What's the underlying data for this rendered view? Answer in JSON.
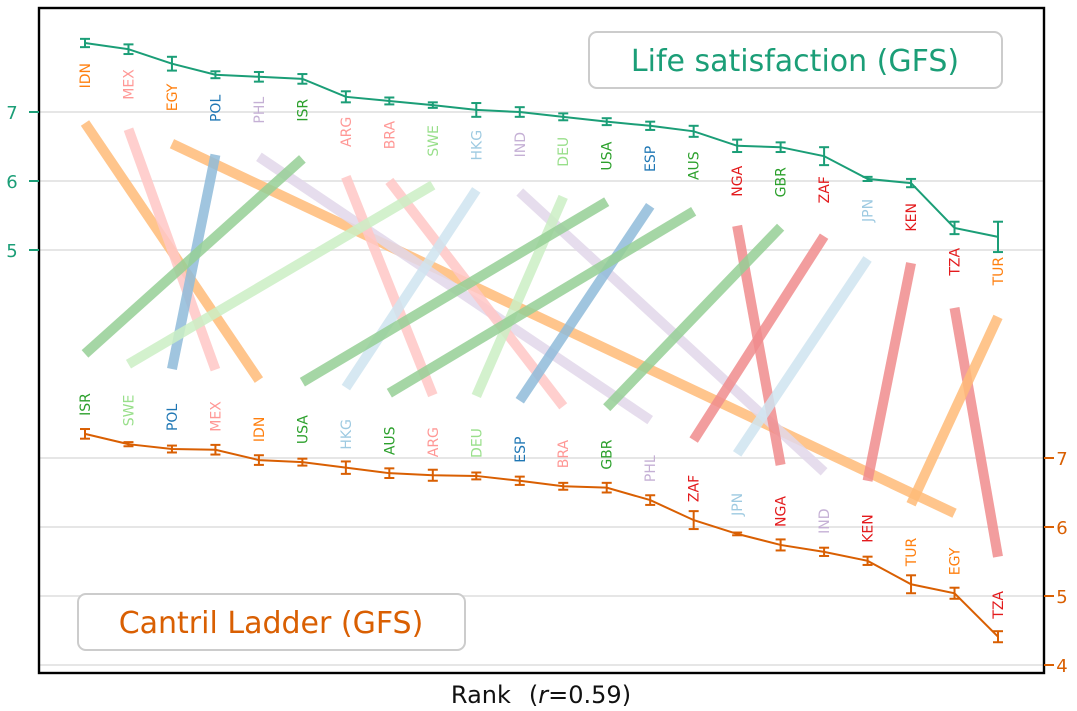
{
  "chart_data": {
    "type": "line",
    "subtype": "bump-chart",
    "title": "",
    "xlabel": "Rank",
    "xlabel_annotation_prefix": "(",
    "xlabel_annotation_var": "r",
    "xlabel_annotation_rest": "=0.59)",
    "correlation_r": 0.59,
    "grid": true,
    "series": [
      {
        "name": "Life satisfaction (GFS)",
        "axis": "left",
        "color": "#1b9e77",
        "legend_position": "top-right",
        "ticks": [
          5,
          6,
          7
        ],
        "order": [
          "IDN",
          "MEX",
          "EGY",
          "POL",
          "PHL",
          "ISR",
          "ARG",
          "BRA",
          "SWE",
          "HKG",
          "IND",
          "DEU",
          "USA",
          "ESP",
          "AUS",
          "NGA",
          "GBR",
          "ZAF",
          "JPN",
          "KEN",
          "TZA",
          "TUR"
        ],
        "values": [
          8.0,
          7.91,
          7.7,
          7.54,
          7.51,
          7.48,
          7.22,
          7.16,
          7.1,
          7.03,
          7.0,
          6.93,
          6.86,
          6.8,
          6.72,
          6.51,
          6.49,
          6.36,
          6.03,
          5.97,
          5.32,
          5.19
        ],
        "errors": [
          0.06,
          0.07,
          0.1,
          0.05,
          0.07,
          0.07,
          0.08,
          0.05,
          0.04,
          0.1,
          0.07,
          0.05,
          0.05,
          0.06,
          0.08,
          0.09,
          0.07,
          0.13,
          0.03,
          0.06,
          0.09,
          0.22
        ]
      },
      {
        "name": "Cantril Ladder (GFS)",
        "axis": "right",
        "color": "#d95f02",
        "legend_position": "bottom-left",
        "ticks": [
          4,
          5,
          6,
          7
        ],
        "order": [
          "ISR",
          "SWE",
          "POL",
          "MEX",
          "IDN",
          "USA",
          "HKG",
          "AUS",
          "ARG",
          "DEU",
          "ESP",
          "BRA",
          "GBR",
          "PHL",
          "ZAF",
          "JPN",
          "NGA",
          "IND",
          "KEN",
          "TUR",
          "EGY",
          "TZA"
        ],
        "values": [
          7.35,
          7.2,
          7.13,
          7.12,
          6.97,
          6.94,
          6.86,
          6.78,
          6.75,
          6.74,
          6.67,
          6.59,
          6.57,
          6.39,
          6.1,
          5.9,
          5.74,
          5.64,
          5.51,
          5.17,
          5.04,
          4.41
        ],
        "errors": [
          0.07,
          0.03,
          0.05,
          0.07,
          0.07,
          0.05,
          0.09,
          0.07,
          0.08,
          0.05,
          0.06,
          0.05,
          0.07,
          0.07,
          0.13,
          0.02,
          0.08,
          0.06,
          0.06,
          0.13,
          0.08,
          0.08
        ]
      }
    ],
    "country_colors": {
      "IDN": "#ff7f0e",
      "MEX": "#ff9896",
      "EGY": "#ff7f0e",
      "POL": "#1f77b4",
      "PHL": "#c5b0d5",
      "ISR": "#2ca02c",
      "ARG": "#ff9896",
      "BRA": "#ff9896",
      "SWE": "#98df8a",
      "HKG": "#9ecae1",
      "IND": "#c5b0d5",
      "DEU": "#98df8a",
      "USA": "#2ca02c",
      "ESP": "#1f77b4",
      "AUS": "#2ca02c",
      "NGA": "#e31a1c",
      "GBR": "#2ca02c",
      "ZAF": "#e31a1c",
      "JPN": "#9ecae1",
      "KEN": "#e31a1c",
      "TZA": "#e31a1c",
      "TUR": "#ff7f0e"
    },
    "slope_line_colors": {
      "IDN": "#ffbb78",
      "MEX": "#ffc7c6",
      "EGY": "#ffbb78",
      "POL": "#8fbbd9",
      "PHL": "#e2d7ea",
      "ISR": "#95cf95",
      "ARG": "#ffc7c6",
      "BRA": "#ffc7c6",
      "SWE": "#cbefc4",
      "HKG": "#cfe4f0",
      "IND": "#e2d7ea",
      "DEU": "#cbefc4",
      "USA": "#95cf95",
      "ESP": "#8fbbd9",
      "AUS": "#95cf95",
      "NGA": "#f08c8d",
      "GBR": "#95cf95",
      "ZAF": "#f08c8d",
      "JPN": "#cfe4f0",
      "KEN": "#f08c8d",
      "TZA": "#f08c8d",
      "TUR": "#ffbb78"
    }
  }
}
